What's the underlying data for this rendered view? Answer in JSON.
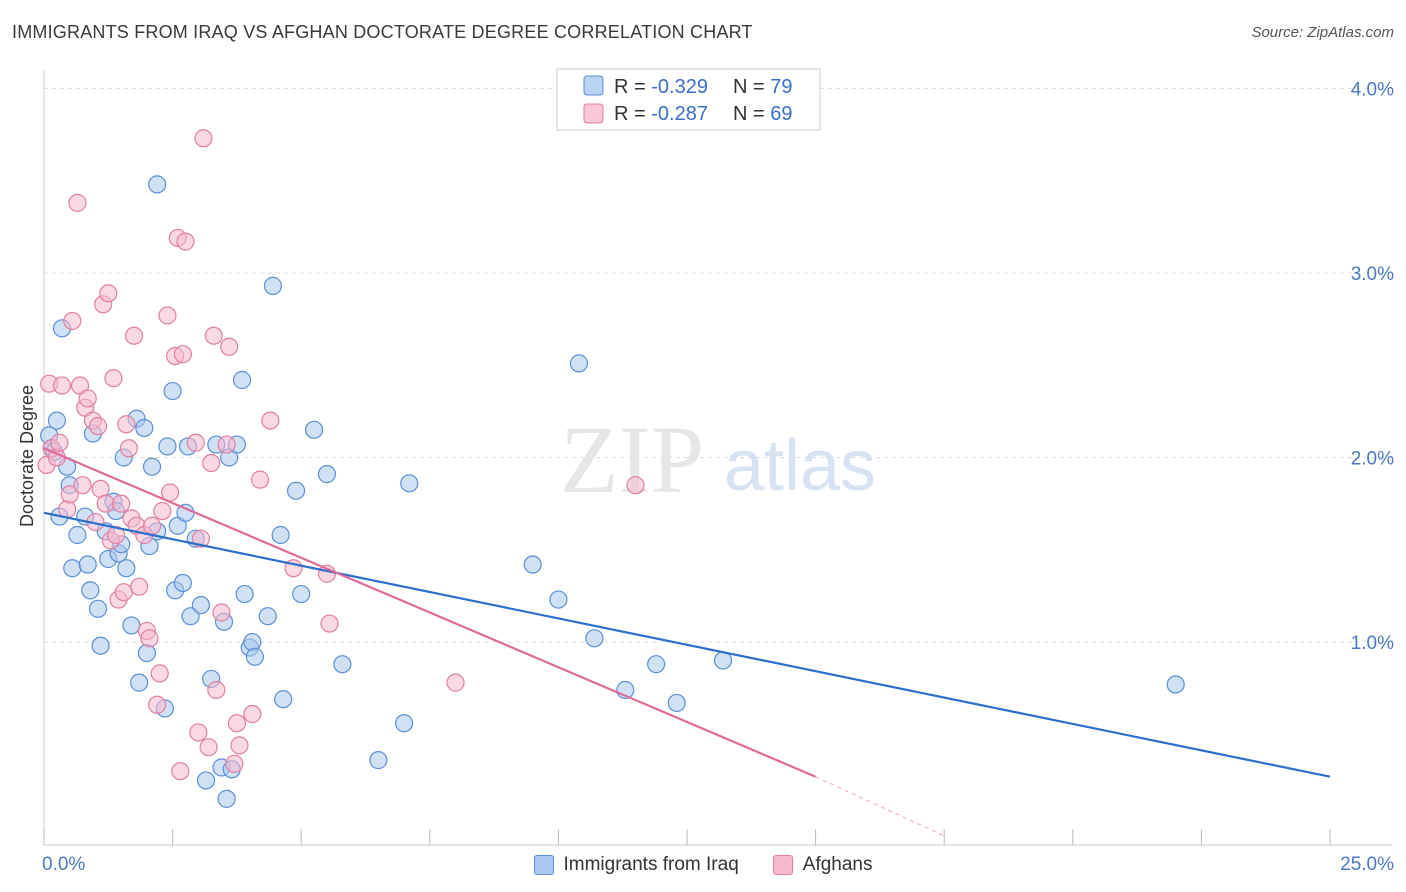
{
  "header": {
    "title": "IMMIGRANTS FROM IRAQ VS AFGHAN DOCTORATE DEGREE CORRELATION CHART",
    "source": "Source: ZipAtlas.com"
  },
  "watermark": {
    "zip": "ZIP",
    "atlas": "atlas"
  },
  "colors": {
    "iraq_fill": "#aac8ef",
    "iraq_stroke": "#5b8fd6",
    "iraq_line": "#2b6fcc",
    "afghan_fill": "#f7b9cd",
    "afghan_stroke": "#e07fa0",
    "afghan_line": "#e0699a",
    "grid": "#dddddd",
    "axis_text": "#4a78c2"
  },
  "legend": {
    "rows": [
      {
        "r_label": "R = ",
        "r_value": "-0.329",
        "n_label": "N = ",
        "n_value": "79"
      },
      {
        "r_label": "R = ",
        "r_value": "-0.287",
        "n_label": "N = ",
        "n_value": "69"
      }
    ]
  },
  "chart_data": {
    "type": "scatter",
    "title": "IMMIGRANTS FROM IRAQ VS AFGHAN DOCTORATE DEGREE CORRELATION CHART",
    "xlabel": "",
    "ylabel": "Doctorate Degree",
    "xlim": [
      0,
      25
    ],
    "ylim": [
      -0.1,
      4.1
    ],
    "x_ticks": [
      0,
      25
    ],
    "x_tick_labels": [
      "0.0%",
      "25.0%"
    ],
    "y_ticks": [
      1,
      2,
      3,
      4
    ],
    "y_tick_labels": [
      "1.0%",
      "2.0%",
      "3.0%",
      "4.0%"
    ],
    "grid": true,
    "legend_position": "top-center",
    "series": [
      {
        "name": "Immigrants from Iraq",
        "r": -0.329,
        "n": 79,
        "trend": {
          "x": [
            0,
            25
          ],
          "y": [
            1.7,
            0.27
          ]
        },
        "points": [
          [
            0.1,
            2.12
          ],
          [
            0.15,
            2.05
          ],
          [
            0.25,
            2.2
          ],
          [
            0.3,
            1.68
          ],
          [
            0.35,
            2.7
          ],
          [
            0.45,
            1.95
          ],
          [
            0.5,
            1.85
          ],
          [
            0.55,
            1.4
          ],
          [
            0.65,
            1.58
          ],
          [
            0.8,
            1.68
          ],
          [
            0.85,
            1.42
          ],
          [
            0.9,
            1.28
          ],
          [
            0.95,
            2.13
          ],
          [
            1.1,
            0.98
          ],
          [
            1.2,
            1.6
          ],
          [
            1.25,
            1.45
          ],
          [
            1.35,
            1.76
          ],
          [
            1.4,
            1.71
          ],
          [
            1.45,
            1.48
          ],
          [
            1.5,
            1.53
          ],
          [
            1.55,
            2.0
          ],
          [
            1.6,
            1.4
          ],
          [
            1.7,
            1.09
          ],
          [
            1.8,
            2.21
          ],
          [
            1.85,
            0.78
          ],
          [
            1.95,
            2.16
          ],
          [
            2.0,
            0.94
          ],
          [
            2.05,
            1.52
          ],
          [
            2.1,
            1.95
          ],
          [
            2.2,
            1.6
          ],
          [
            2.2,
            3.48
          ],
          [
            2.35,
            0.64
          ],
          [
            2.4,
            2.06
          ],
          [
            2.5,
            2.36
          ],
          [
            2.55,
            1.28
          ],
          [
            2.6,
            1.63
          ],
          [
            2.7,
            1.32
          ],
          [
            2.75,
            1.7
          ],
          [
            2.8,
            2.06
          ],
          [
            2.85,
            1.14
          ],
          [
            2.95,
            1.56
          ],
          [
            3.05,
            1.2
          ],
          [
            3.15,
            0.25
          ],
          [
            3.25,
            0.8
          ],
          [
            3.35,
            2.07
          ],
          [
            3.45,
            0.32
          ],
          [
            3.5,
            1.11
          ],
          [
            3.55,
            0.15
          ],
          [
            3.6,
            2.0
          ],
          [
            3.65,
            0.31
          ],
          [
            3.75,
            2.07
          ],
          [
            3.85,
            2.42
          ],
          [
            3.9,
            1.26
          ],
          [
            4.0,
            0.97
          ],
          [
            4.05,
            1.0
          ],
          [
            4.1,
            0.92
          ],
          [
            4.35,
            1.14
          ],
          [
            4.45,
            2.93
          ],
          [
            4.6,
            1.58
          ],
          [
            4.65,
            0.69
          ],
          [
            4.9,
            1.82
          ],
          [
            5.0,
            1.26
          ],
          [
            5.25,
            2.15
          ],
          [
            5.5,
            1.91
          ],
          [
            5.8,
            0.88
          ],
          [
            6.5,
            0.36
          ],
          [
            7.0,
            0.56
          ],
          [
            7.1,
            1.86
          ],
          [
            9.5,
            1.42
          ],
          [
            10.0,
            1.23
          ],
          [
            10.4,
            2.51
          ],
          [
            10.7,
            1.02
          ],
          [
            11.3,
            0.74
          ],
          [
            11.9,
            0.88
          ],
          [
            12.3,
            0.67
          ],
          [
            13.2,
            0.9
          ],
          [
            22.0,
            0.77
          ],
          [
            0.2,
            2.03
          ],
          [
            1.05,
            1.18
          ]
        ]
      },
      {
        "name": "Afghans",
        "r": -0.287,
        "n": 69,
        "trend": {
          "x": [
            0,
            15
          ],
          "y": [
            2.05,
            0.27
          ]
        },
        "trend_dashed": {
          "x": [
            15,
            17.5
          ],
          "y": [
            0.27,
            -0.05
          ]
        },
        "points": [
          [
            0.05,
            1.96
          ],
          [
            0.1,
            2.4
          ],
          [
            0.15,
            2.05
          ],
          [
            0.25,
            2.0
          ],
          [
            0.35,
            2.39
          ],
          [
            0.45,
            1.72
          ],
          [
            0.5,
            1.8
          ],
          [
            0.55,
            2.74
          ],
          [
            0.65,
            3.38
          ],
          [
            0.7,
            2.39
          ],
          [
            0.75,
            1.85
          ],
          [
            0.8,
            2.27
          ],
          [
            0.85,
            2.32
          ],
          [
            0.95,
            2.2
          ],
          [
            1.0,
            1.65
          ],
          [
            1.05,
            2.17
          ],
          [
            1.1,
            1.83
          ],
          [
            1.15,
            2.83
          ],
          [
            1.2,
            1.75
          ],
          [
            1.25,
            2.89
          ],
          [
            1.3,
            1.55
          ],
          [
            1.35,
            2.43
          ],
          [
            1.45,
            1.23
          ],
          [
            1.5,
            1.75
          ],
          [
            1.55,
            1.27
          ],
          [
            1.6,
            2.18
          ],
          [
            1.65,
            2.05
          ],
          [
            1.7,
            1.67
          ],
          [
            1.75,
            2.66
          ],
          [
            1.8,
            1.63
          ],
          [
            1.85,
            1.3
          ],
          [
            1.95,
            1.58
          ],
          [
            2.0,
            1.06
          ],
          [
            2.05,
            1.02
          ],
          [
            2.1,
            1.63
          ],
          [
            2.2,
            0.66
          ],
          [
            2.25,
            0.83
          ],
          [
            2.3,
            1.71
          ],
          [
            2.4,
            2.77
          ],
          [
            2.45,
            1.81
          ],
          [
            2.55,
            2.55
          ],
          [
            2.6,
            3.19
          ],
          [
            2.65,
            0.3
          ],
          [
            2.7,
            2.56
          ],
          [
            2.75,
            3.17
          ],
          [
            2.95,
            2.08
          ],
          [
            3.0,
            0.51
          ],
          [
            3.05,
            1.56
          ],
          [
            3.1,
            3.73
          ],
          [
            3.2,
            0.43
          ],
          [
            3.25,
            1.97
          ],
          [
            3.3,
            2.66
          ],
          [
            3.35,
            0.74
          ],
          [
            3.45,
            1.16
          ],
          [
            3.55,
            2.07
          ],
          [
            3.6,
            2.6
          ],
          [
            3.7,
            0.34
          ],
          [
            3.75,
            0.56
          ],
          [
            3.8,
            0.44
          ],
          [
            4.05,
            0.61
          ],
          [
            4.2,
            1.88
          ],
          [
            4.4,
            2.2
          ],
          [
            4.85,
            1.4
          ],
          [
            5.5,
            1.37
          ],
          [
            5.55,
            1.1
          ],
          [
            8.0,
            0.78
          ],
          [
            11.5,
            1.85
          ],
          [
            0.3,
            2.08
          ],
          [
            1.4,
            1.58
          ]
        ]
      }
    ]
  },
  "bottom_legend": {
    "items": [
      {
        "label": "Immigrants from Iraq"
      },
      {
        "label": "Afghans"
      }
    ]
  }
}
